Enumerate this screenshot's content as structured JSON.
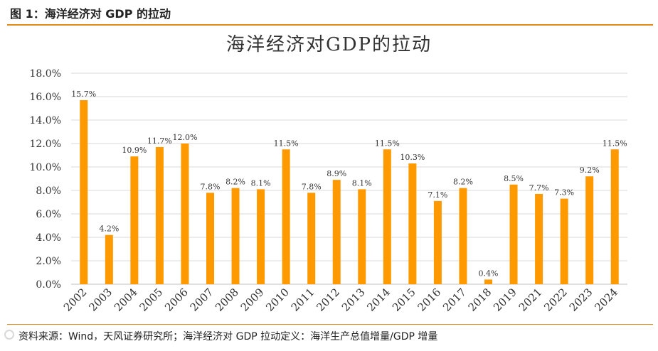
{
  "figure": {
    "caption": "图 1：海洋经济对 GDP 的拉动",
    "source": "资料来源：Wind，天风证券研究所；海洋经济对 GDP 拉动定义：海洋生产总值增量/GDP 增量"
  },
  "colors": {
    "accent": "#e38b16",
    "bar": "#ff9900",
    "grid": "#d9d9d9",
    "text": "#333333"
  },
  "chart_data": {
    "type": "bar",
    "title": "海洋经济对GDP的拉动",
    "xlabel": "",
    "ylabel": "",
    "ylim": [
      0,
      18
    ],
    "y_ticks": [
      "0.0%",
      "2.0%",
      "4.0%",
      "6.0%",
      "8.0%",
      "10.0%",
      "12.0%",
      "14.0%",
      "16.0%",
      "18.0%"
    ],
    "categories": [
      "2002",
      "2003",
      "2004",
      "2005",
      "2006",
      "2007",
      "2008",
      "2009",
      "2010",
      "2011",
      "2012",
      "2013",
      "2014",
      "2015",
      "2016",
      "2017",
      "2018",
      "2019",
      "2021",
      "2022",
      "2023",
      "2024"
    ],
    "values": [
      15.7,
      4.2,
      10.9,
      11.7,
      12.0,
      7.8,
      8.2,
      8.1,
      11.5,
      7.8,
      8.9,
      8.1,
      11.5,
      10.3,
      7.1,
      8.2,
      0.4,
      8.5,
      7.7,
      7.3,
      9.2,
      11.5
    ],
    "data_labels": [
      "15.7%",
      "4.2%",
      "10.9%",
      "11.7%",
      "12.0%",
      "7.8%",
      "8.2%",
      "8.1%",
      "11.5%",
      "7.8%",
      "8.9%",
      "8.1%",
      "11.5%",
      "10.3%",
      "7.1%",
      "8.2%",
      "0.4%",
      "8.5%",
      "7.7%",
      "7.3%",
      "9.2%",
      "11.5%"
    ],
    "grid": true,
    "legend": "none"
  }
}
